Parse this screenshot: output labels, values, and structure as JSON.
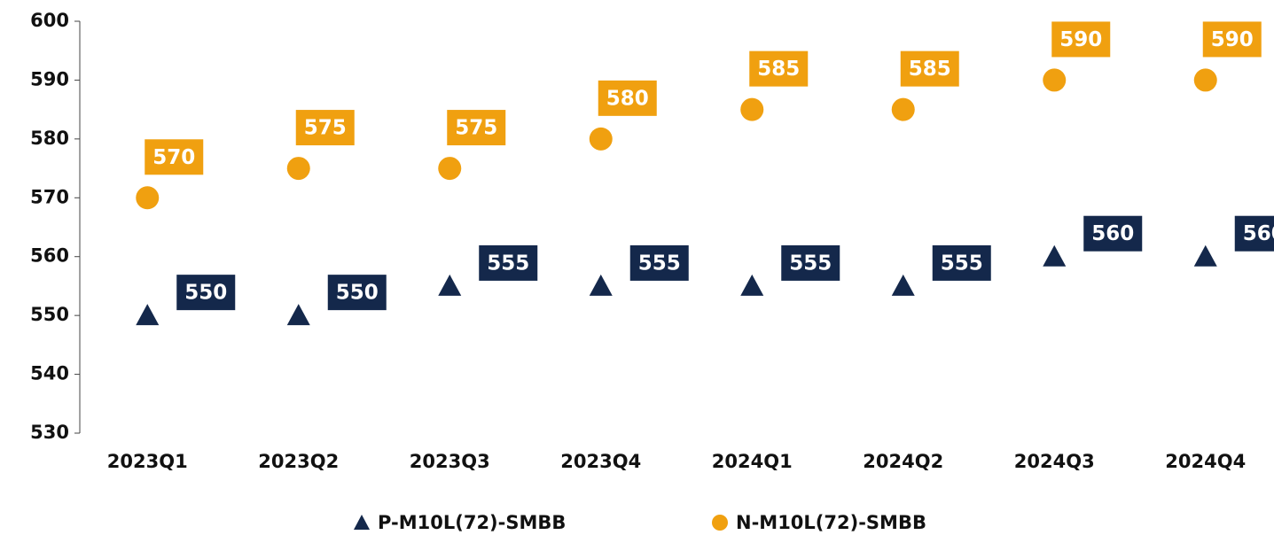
{
  "chart_data": {
    "type": "scatter",
    "categories": [
      "2023Q1",
      "2023Q2",
      "2023Q3",
      "2023Q4",
      "2024Q1",
      "2024Q2",
      "2024Q3",
      "2024Q4"
    ],
    "series": [
      {
        "name": "P-M10L(72)-SMBB",
        "color": "#14284b",
        "marker": "triangle",
        "values": [
          550,
          550,
          555,
          555,
          555,
          555,
          560,
          560
        ]
      },
      {
        "name": "N-M10L(72)-SMBB",
        "color": "#f0a010",
        "marker": "circle",
        "values": [
          570,
          575,
          575,
          580,
          585,
          585,
          590,
          590
        ]
      }
    ],
    "ylim": [
      530,
      600
    ],
    "yticks": [
      530,
      540,
      550,
      560,
      570,
      580,
      590,
      600
    ],
    "legend": "bottom"
  }
}
